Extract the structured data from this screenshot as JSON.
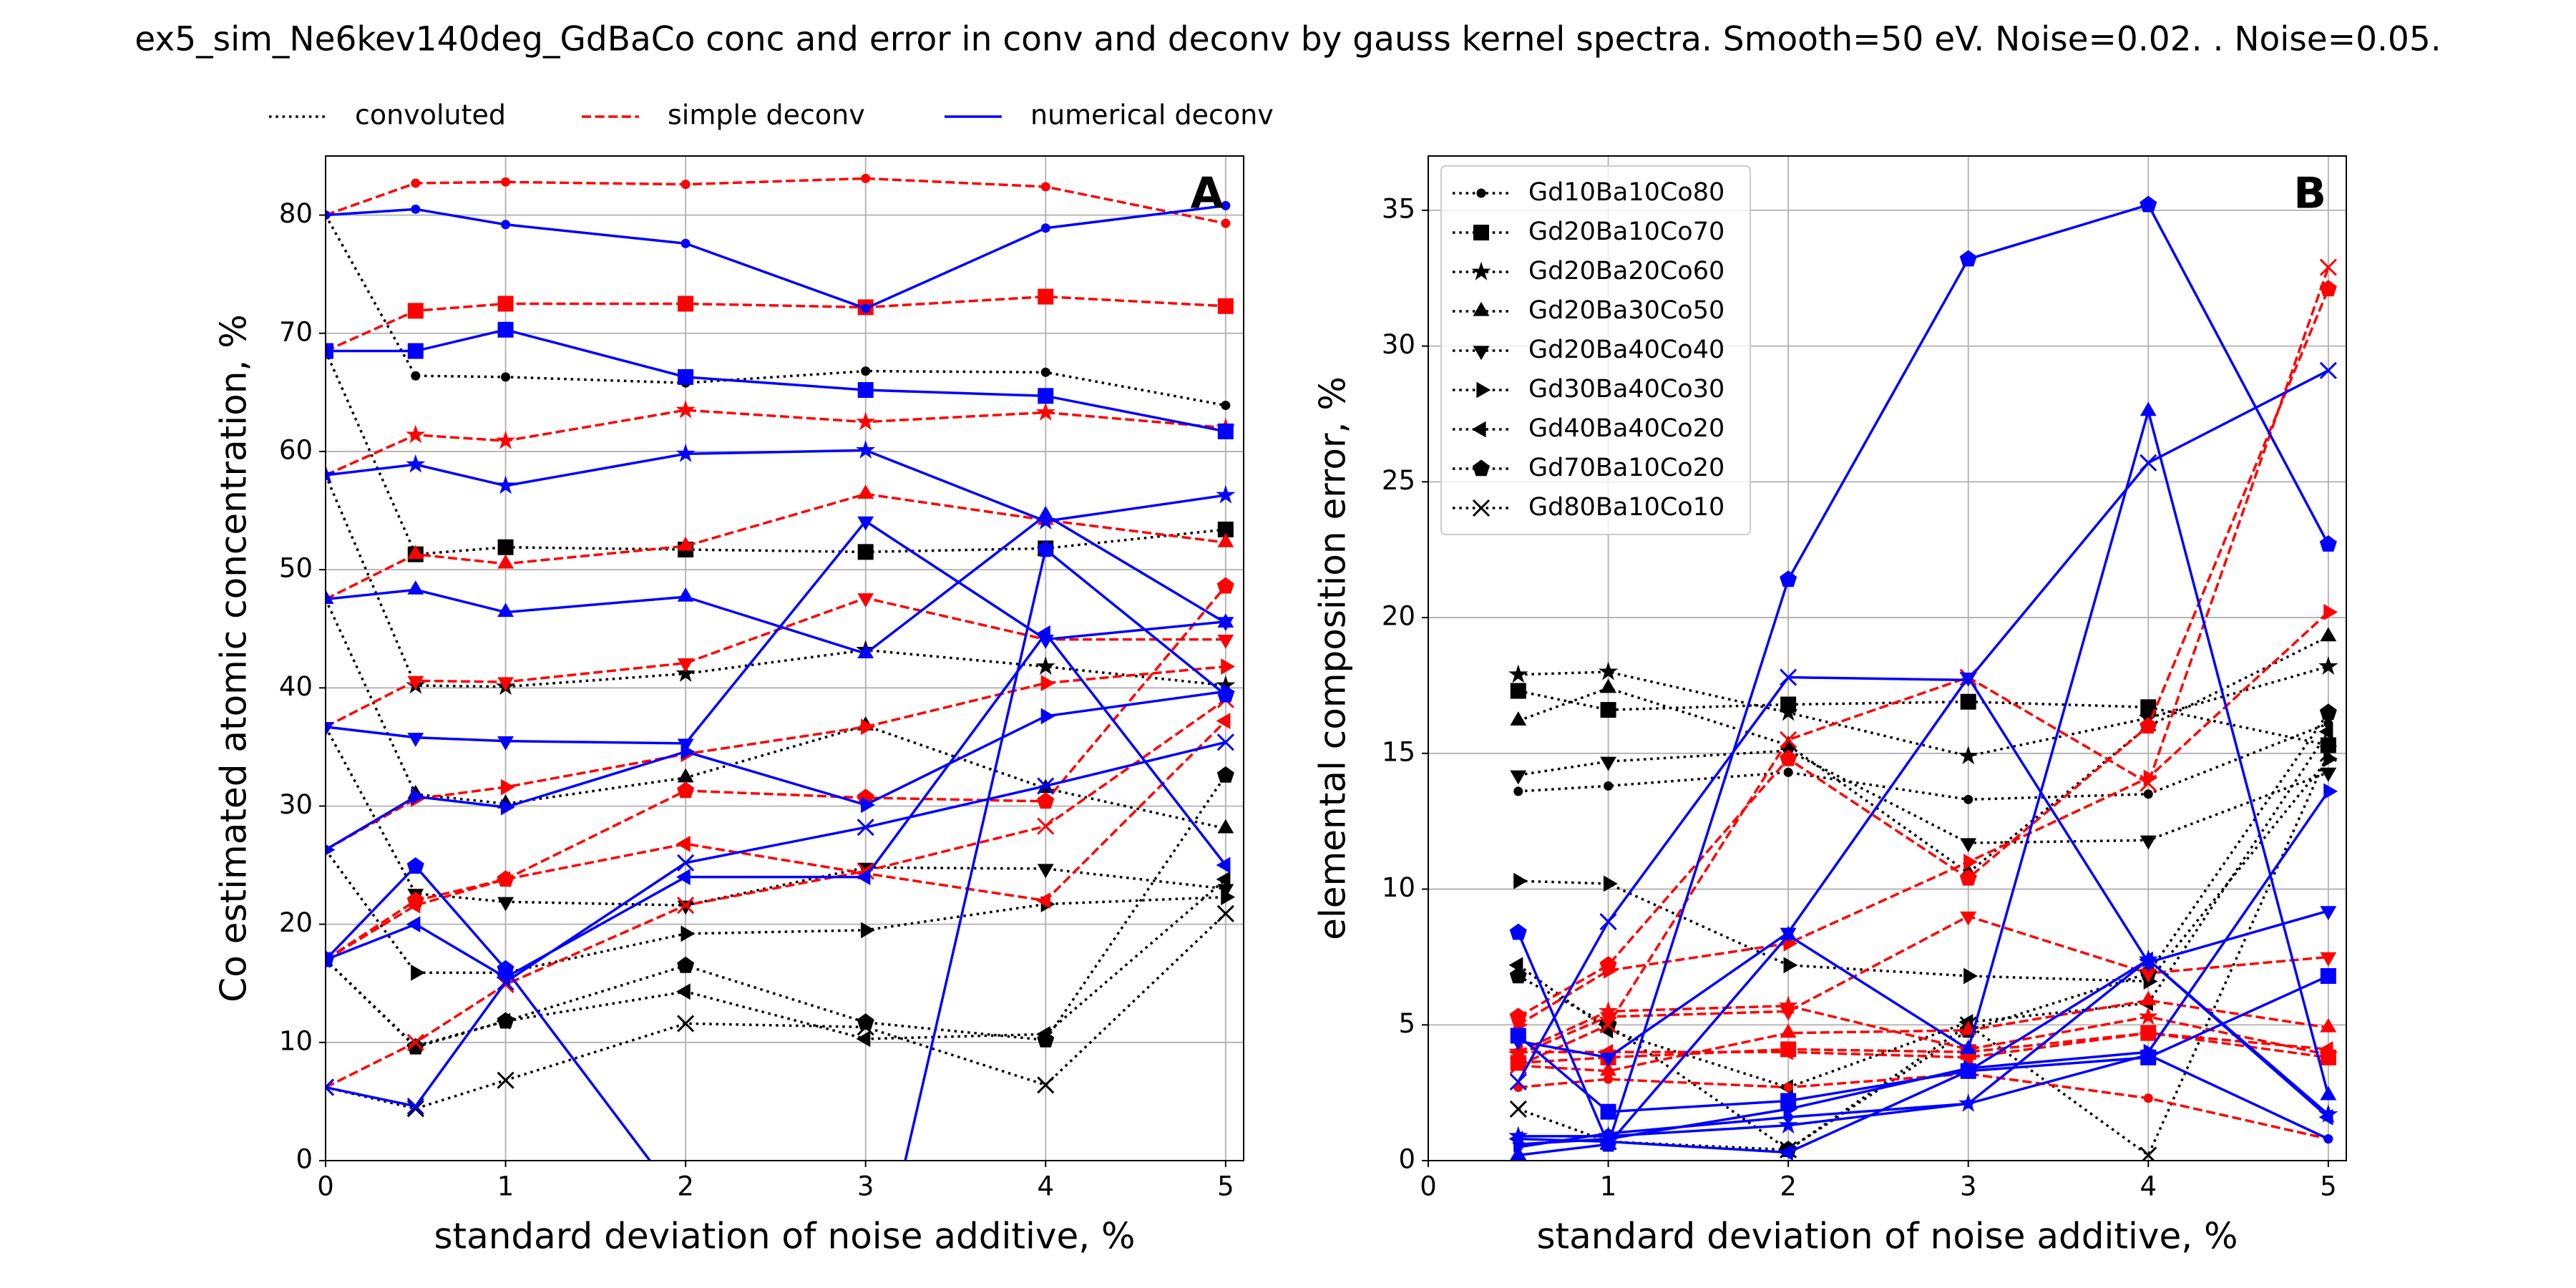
{
  "figure": {
    "title": "ex5_sim_Ne6kev140deg_GdBaCo conc and error in conv and deconv by gauss kernel spectra. Smooth=50 eV. Noise=0.02. . Noise=0.05.",
    "legend": "above",
    "line_styles": [
      {
        "name": "convoluted",
        "color": "#000000",
        "dash": "dotted"
      },
      {
        "name": "simple deconv",
        "color": "#ff0000",
        "dash": "dashed"
      },
      {
        "name": "numerical deconv",
        "color": "#0000ff",
        "dash": "solid"
      }
    ],
    "compositions": [
      {
        "name": "Gd10Ba10Co80",
        "marker": "circle"
      },
      {
        "name": "Gd20Ba10Co70",
        "marker": "square"
      },
      {
        "name": "Gd20Ba20Co60",
        "marker": "star"
      },
      {
        "name": "Gd20Ba30Co50",
        "marker": "triangle-up"
      },
      {
        "name": "Gd20Ba40Co40",
        "marker": "triangle-down"
      },
      {
        "name": "Gd30Ba40Co30",
        "marker": "triangle-right"
      },
      {
        "name": "Gd40Ba40Co20",
        "marker": "triangle-left"
      },
      {
        "name": "Gd70Ba10Co20",
        "marker": "pentagon"
      },
      {
        "name": "Gd80Ba10Co10",
        "marker": "x"
      }
    ]
  },
  "chart_data": [
    {
      "type": "line",
      "panel_label": "A",
      "xlabel": "standard deviation of noise additive, %",
      "ylabel": "Co estimated atomic concentration, %",
      "x": [
        0,
        0.5,
        1,
        2,
        3,
        4,
        5
      ],
      "xlim": [
        0,
        5.1
      ],
      "xticks": [
        0,
        1,
        2,
        3,
        4,
        5
      ],
      "ylim": [
        0,
        85
      ],
      "yticks": [
        0,
        10,
        20,
        30,
        40,
        50,
        60,
        70,
        80
      ],
      "grid": true,
      "series": [
        {
          "style": 0,
          "composition": 0,
          "values": [
            80,
            66.4,
            66.3,
            65.8,
            66.8,
            66.7,
            63.9
          ]
        },
        {
          "style": 0,
          "composition": 1,
          "values": [
            68.5,
            51.3,
            51.9,
            51.7,
            51.5,
            51.8,
            53.4
          ]
        },
        {
          "style": 0,
          "composition": 2,
          "values": [
            58,
            40.2,
            40.1,
            41.2,
            43.2,
            41.8,
            40.2
          ]
        },
        {
          "style": 0,
          "composition": 3,
          "values": [
            47.5,
            31,
            30.2,
            32.4,
            36.8,
            31.5,
            28.1
          ]
        },
        {
          "style": 0,
          "composition": 4,
          "values": [
            36.7,
            22.6,
            21.9,
            21.6,
            24.8,
            24.7,
            23
          ]
        },
        {
          "style": 0,
          "composition": 5,
          "values": [
            26.3,
            15.9,
            15.9,
            19.2,
            19.5,
            21.7,
            22.3
          ]
        },
        {
          "style": 0,
          "composition": 6,
          "values": [
            17,
            9.7,
            11.8,
            14.3,
            10.3,
            10.7,
            23.8
          ]
        },
        {
          "style": 0,
          "composition": 7,
          "values": [
            17,
            9.6,
            11.8,
            16.5,
            11.7,
            10.2,
            32.6
          ]
        },
        {
          "style": 0,
          "composition": 8,
          "values": [
            6.2,
            4.4,
            6.8,
            11.6,
            11.3,
            6.4,
            20.9
          ]
        },
        {
          "style": 1,
          "composition": 0,
          "values": [
            80,
            82.7,
            82.8,
            82.6,
            83.1,
            82.4,
            79.3
          ]
        },
        {
          "style": 1,
          "composition": 1,
          "values": [
            68.5,
            71.9,
            72.5,
            72.5,
            72.2,
            73.1,
            72.3
          ]
        },
        {
          "style": 1,
          "composition": 2,
          "values": [
            58,
            61.4,
            60.9,
            63.5,
            62.5,
            63.3,
            62
          ]
        },
        {
          "style": 1,
          "composition": 3,
          "values": [
            47.5,
            51.3,
            50.5,
            52,
            56.4,
            54.2,
            52.3
          ]
        },
        {
          "style": 1,
          "composition": 4,
          "values": [
            36.7,
            40.6,
            40.5,
            42.1,
            47.6,
            44.1,
            44.1
          ]
        },
        {
          "style": 1,
          "composition": 5,
          "values": [
            26.3,
            30.6,
            31.6,
            34.4,
            36.7,
            40.4,
            41.8
          ]
        },
        {
          "style": 1,
          "composition": 6,
          "values": [
            17,
            21.6,
            23.8,
            26.8,
            24.3,
            22,
            37.2
          ]
        },
        {
          "style": 1,
          "composition": 7,
          "values": [
            17,
            22,
            23.8,
            31.3,
            30.7,
            30.4,
            48.6
          ]
        },
        {
          "style": 1,
          "composition": 8,
          "values": [
            6.2,
            10,
            14.9,
            21.6,
            24.5,
            28.3,
            39
          ]
        },
        {
          "style": 2,
          "composition": 0,
          "values": [
            80,
            80.5,
            79.2,
            77.6,
            72.1,
            78.9,
            80.8
          ]
        },
        {
          "style": 2,
          "composition": 1,
          "values": [
            68.5,
            68.5,
            70.3,
            66.3,
            65.2,
            64.7,
            61.7
          ]
        },
        {
          "style": 2,
          "composition": 2,
          "values": [
            58,
            58.9,
            57.1,
            59.8,
            60.1,
            54.1,
            56.3
          ]
        },
        {
          "style": 2,
          "composition": 3,
          "values": [
            47.5,
            48.3,
            46.4,
            47.7,
            42.9,
            54.6,
            45.5
          ]
        },
        {
          "style": 2,
          "composition": 4,
          "values": [
            36.7,
            35.8,
            35.5,
            35.3,
            54.1,
            44.1,
            45.6
          ]
        },
        {
          "style": 2,
          "composition": 5,
          "values": [
            26.3,
            30.8,
            29.9,
            34.6,
            30.1,
            37.6,
            39.7
          ]
        },
        {
          "style": 2,
          "composition": 6,
          "values": [
            17,
            20,
            15.5,
            24,
            24,
            44.6,
            25
          ]
        },
        {
          "style": 2,
          "composition": 7,
          "values": [
            17,
            24.9,
            16.2,
            -4,
            -14.6,
            51.7,
            39.4
          ]
        },
        {
          "style": 2,
          "composition": 8,
          "values": [
            6.2,
            4.6,
            15.1,
            25.2,
            28.2,
            31.7,
            35.4
          ]
        }
      ]
    },
    {
      "type": "line",
      "panel_label": "B",
      "xlabel": "standard deviation of noise additive, %",
      "ylabel": "elemental composition error, %",
      "x": [
        0.5,
        1,
        2,
        3,
        4,
        5
      ],
      "xlim": [
        0,
        5.1
      ],
      "xticks": [
        0,
        1,
        2,
        3,
        4,
        5
      ],
      "ylim": [
        0,
        37
      ],
      "yticks": [
        0,
        5,
        10,
        15,
        20,
        25,
        30,
        35
      ],
      "grid": true,
      "legend": "upper left",
      "series": [
        {
          "style": 0,
          "composition": 0,
          "values": [
            13.6,
            13.8,
            14.3,
            13.3,
            13.5,
            16.1
          ]
        },
        {
          "style": 0,
          "composition": 1,
          "values": [
            17.3,
            16.6,
            16.8,
            16.9,
            16.7,
            15.3
          ]
        },
        {
          "style": 0,
          "composition": 2,
          "values": [
            17.9,
            18,
            16.5,
            14.9,
            16.3,
            18.2
          ]
        },
        {
          "style": 0,
          "composition": 3,
          "values": [
            16.2,
            17.4,
            15.3,
            10.6,
            16,
            19.3
          ]
        },
        {
          "style": 0,
          "composition": 4,
          "values": [
            14.2,
            14.7,
            15.1,
            11.7,
            11.8,
            14.3
          ]
        },
        {
          "style": 0,
          "composition": 5,
          "values": [
            10.3,
            10.2,
            7.2,
            6.8,
            6.6,
            14.8
          ]
        },
        {
          "style": 0,
          "composition": 6,
          "values": [
            7.2,
            4.8,
            2.7,
            5.1,
            5.8,
            15.8
          ]
        },
        {
          "style": 0,
          "composition": 7,
          "values": [
            6.8,
            5,
            0.4,
            4.8,
            6.9,
            16.5
          ]
        },
        {
          "style": 0,
          "composition": 8,
          "values": [
            1.9,
            0.7,
            0.4,
            5,
            0.2,
            15
          ]
        },
        {
          "style": 1,
          "composition": 0,
          "values": [
            2.7,
            3,
            2.7,
            3.2,
            2.3,
            0.8
          ]
        },
        {
          "style": 1,
          "composition": 1,
          "values": [
            3.6,
            3.8,
            4.1,
            4,
            4.7,
            3.8
          ]
        },
        {
          "style": 1,
          "composition": 2,
          "values": [
            4,
            5.5,
            5.7,
            4.1,
            5.3,
            3.9
          ]
        },
        {
          "style": 1,
          "composition": 3,
          "values": [
            3.5,
            3.3,
            4.7,
            4.8,
            5.9,
            4.9
          ]
        },
        {
          "style": 1,
          "composition": 4,
          "values": [
            3.9,
            5.3,
            5.5,
            9,
            6.9,
            7.5
          ]
        },
        {
          "style": 1,
          "composition": 5,
          "values": [
            5,
            7,
            8,
            11,
            14.1,
            20.2
          ]
        },
        {
          "style": 1,
          "composition": 6,
          "values": [
            4,
            4,
            4,
            3.8,
            4.7,
            4.1
          ]
        },
        {
          "style": 1,
          "composition": 7,
          "values": [
            5.3,
            7.2,
            14.8,
            10.4,
            16,
            32.1
          ]
        },
        {
          "style": 1,
          "composition": 8,
          "values": [
            3.5,
            5,
            15.5,
            17.8,
            13.9,
            32.9
          ]
        },
        {
          "style": 2,
          "composition": 0,
          "values": [
            0.5,
            1,
            1.6,
            2.1,
            3.9,
            0.8
          ]
        },
        {
          "style": 2,
          "composition": 1,
          "values": [
            4.6,
            1.8,
            2.2,
            3.3,
            3.8,
            6.8
          ]
        },
        {
          "style": 2,
          "composition": 2,
          "values": [
            0.9,
            0.9,
            1.3,
            2.1,
            7.4,
            1.7
          ]
        },
        {
          "style": 2,
          "composition": 3,
          "values": [
            0.2,
            0.6,
            8.3,
            4.1,
            27.6,
            2.4
          ]
        },
        {
          "style": 2,
          "composition": 4,
          "values": [
            4.4,
            3.8,
            8.4,
            17.8,
            7.3,
            9.2
          ]
        },
        {
          "style": 2,
          "composition": 5,
          "values": [
            0.6,
            0.8,
            1.9,
            3.4,
            4,
            13.6
          ]
        },
        {
          "style": 2,
          "composition": 6,
          "values": [
            0.8,
            0.7,
            0.3,
            3.3,
            7.4,
            1.6
          ]
        },
        {
          "style": 2,
          "composition": 7,
          "values": [
            8.4,
            0.6,
            21.4,
            33.2,
            35.2,
            22.7
          ]
        },
        {
          "style": 2,
          "composition": 8,
          "values": [
            2.9,
            8.8,
            17.8,
            17.7,
            25.7,
            29.1
          ]
        }
      ]
    }
  ]
}
